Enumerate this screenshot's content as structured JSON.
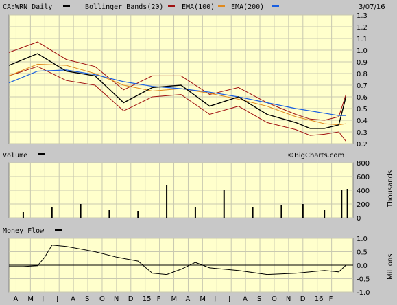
{
  "header": {
    "symbol_label": "CA:WRN Daily",
    "bollinger_label": "Bollinger Bands(20)",
    "ema100_label": "EMA(100)",
    "ema200_label": "EMA(200)",
    "date": "3/07/16"
  },
  "volume_panel": {
    "title": "Volume",
    "watermark": "©BigCharts.com",
    "unit": "Thousands"
  },
  "money_panel": {
    "title": "Money Flow",
    "unit": "Millions"
  },
  "colors": {
    "panel_bg": "#ffffcc",
    "frame": "#c8c8c8",
    "price": "#000000",
    "bollinger": "#a01010",
    "ema100": "#e08a1e",
    "ema200": "#1a5fe0",
    "grid": "#c8c8b0"
  },
  "chart_data": [
    {
      "type": "line",
      "name": "price",
      "xlabels": [
        "A",
        "M",
        "J",
        "J",
        "A",
        "S",
        "O",
        "N",
        "D",
        "15",
        "F",
        "M",
        "A",
        "M",
        "J",
        "J",
        "A",
        "S",
        "O",
        "N",
        "D",
        "16",
        "F"
      ],
      "ylim": [
        0.2,
        1.3
      ],
      "yticks": [
        "1.3",
        "1.2",
        "1.1",
        "1.0",
        "0.9",
        "0.8",
        "0.7",
        "0.6",
        "0.5",
        "0.4",
        "0.3",
        "0.2"
      ],
      "series": [
        {
          "name": "CA:WRN Daily",
          "t": [
            0,
            2,
            4,
            6,
            8,
            10,
            12,
            14,
            16,
            18,
            20,
            21,
            22,
            23,
            23.5
          ],
          "values": [
            0.87,
            0.97,
            0.82,
            0.78,
            0.55,
            0.68,
            0.7,
            0.52,
            0.6,
            0.45,
            0.38,
            0.33,
            0.33,
            0.36,
            0.6
          ]
        },
        {
          "name": "Bollinger Upper",
          "t": [
            0,
            2,
            4,
            6,
            8,
            10,
            12,
            14,
            16,
            18,
            20,
            21,
            22,
            23,
            23.5
          ],
          "values": [
            0.98,
            1.07,
            0.92,
            0.86,
            0.66,
            0.78,
            0.78,
            0.62,
            0.68,
            0.55,
            0.45,
            0.41,
            0.4,
            0.43,
            0.62
          ]
        },
        {
          "name": "Bollinger Lower",
          "t": [
            0,
            2,
            4,
            6,
            8,
            10,
            12,
            14,
            16,
            18,
            20,
            21,
            22,
            23,
            23.5
          ],
          "values": [
            0.78,
            0.86,
            0.74,
            0.7,
            0.48,
            0.6,
            0.62,
            0.45,
            0.52,
            0.38,
            0.32,
            0.27,
            0.28,
            0.3,
            0.22
          ]
        },
        {
          "name": "EMA(100)",
          "t": [
            0,
            2,
            4,
            6,
            8,
            10,
            12,
            14,
            16,
            18,
            20,
            21,
            22,
            23,
            23.5
          ],
          "values": [
            0.78,
            0.88,
            0.87,
            0.8,
            0.7,
            0.65,
            0.67,
            0.63,
            0.58,
            0.52,
            0.43,
            0.4,
            0.37,
            0.36,
            0.37
          ]
        },
        {
          "name": "EMA(200)",
          "t": [
            0,
            2,
            4,
            6,
            8,
            10,
            12,
            14,
            16,
            18,
            20,
            21,
            22,
            23,
            23.5
          ],
          "values": [
            0.72,
            0.82,
            0.83,
            0.79,
            0.73,
            0.69,
            0.67,
            0.64,
            0.6,
            0.55,
            0.5,
            0.48,
            0.46,
            0.44,
            0.44
          ]
        }
      ]
    },
    {
      "type": "bar",
      "name": "volume",
      "ylim": [
        0,
        800
      ],
      "yticks": [
        "800",
        "600",
        "400",
        "200",
        "0"
      ],
      "t": [
        1,
        3,
        5,
        7,
        9,
        11,
        13,
        15,
        17,
        19,
        20.5,
        22,
        23.2,
        23.6
      ],
      "values": [
        80,
        150,
        200,
        120,
        100,
        470,
        150,
        400,
        150,
        180,
        200,
        120,
        400,
        420
      ]
    },
    {
      "type": "line",
      "name": "money_flow",
      "ylim": [
        -1.0,
        1.0
      ],
      "yticks": [
        "1.0",
        "0.5",
        "0.0",
        "-0.5",
        "-1.0"
      ],
      "t": [
        0,
        1,
        2,
        2.5,
        3,
        4,
        6,
        7.5,
        8,
        9,
        10,
        11,
        12,
        13,
        14,
        16,
        18,
        20,
        22,
        23,
        23.5
      ],
      "values": [
        -0.05,
        -0.05,
        -0.02,
        0.3,
        0.75,
        0.7,
        0.5,
        0.3,
        0.25,
        0.15,
        -0.3,
        -0.35,
        -0.15,
        0.1,
        -0.1,
        -0.2,
        -0.35,
        -0.3,
        -0.2,
        -0.25,
        0.0
      ]
    }
  ]
}
